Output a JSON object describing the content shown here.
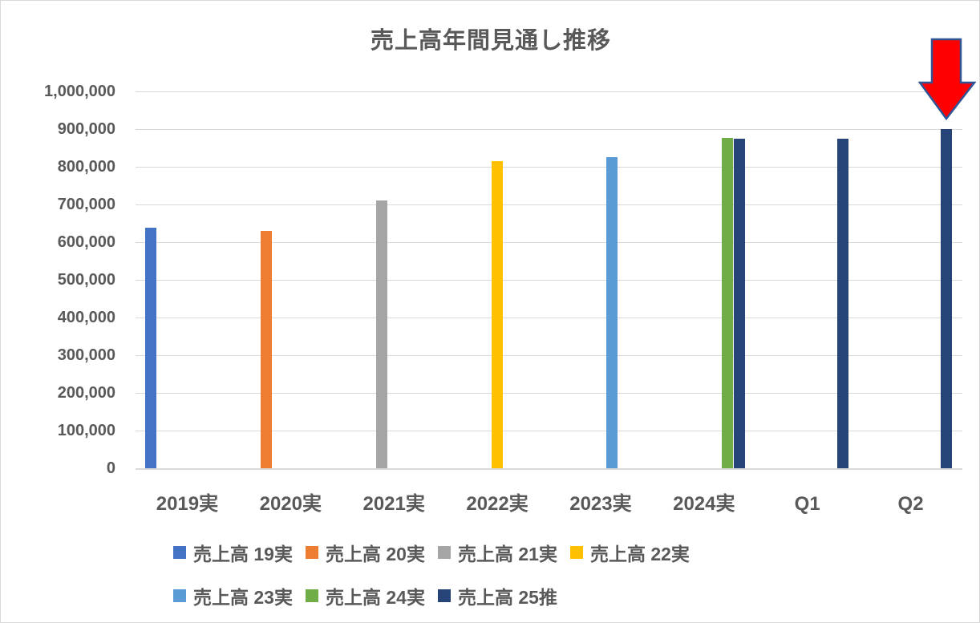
{
  "chart_data": {
    "type": "bar",
    "title": "売上高年間見通し推移",
    "categories": [
      "2019実",
      "2020実",
      "2021実",
      "2022実",
      "2023実",
      "2024実",
      "Q1",
      "Q2"
    ],
    "series": [
      {
        "name": "売上高 19実",
        "color": "#4472C4",
        "values": [
          638000,
          null,
          null,
          null,
          null,
          null,
          null,
          null
        ]
      },
      {
        "name": "売上高 20実",
        "color": "#ED7D31",
        "values": [
          null,
          630000,
          null,
          null,
          null,
          null,
          null,
          null
        ]
      },
      {
        "name": "売上高 21実",
        "color": "#A5A5A5",
        "values": [
          null,
          null,
          710000,
          null,
          null,
          null,
          null,
          null
        ]
      },
      {
        "name": "売上高 22実",
        "color": "#FFC000",
        "values": [
          null,
          null,
          null,
          815000,
          null,
          null,
          null,
          null
        ]
      },
      {
        "name": "売上高 23実",
        "color": "#5B9BD5",
        "values": [
          null,
          null,
          null,
          null,
          825000,
          null,
          null,
          null
        ]
      },
      {
        "name": "売上高 24実",
        "color": "#70AD47",
        "values": [
          null,
          null,
          null,
          null,
          null,
          877000,
          null,
          null
        ]
      },
      {
        "name": "売上高 25推",
        "color": "#264478",
        "values": [
          null,
          null,
          null,
          null,
          null,
          875000,
          875000,
          900000
        ]
      }
    ],
    "y_axis": {
      "min": 0,
      "max": 1000000,
      "step": 100000,
      "tick_labels": [
        "0",
        "100,000",
        "200,000",
        "300,000",
        "400,000",
        "500,000",
        "600,000",
        "700,000",
        "800,000",
        "900,000",
        "1,000,000"
      ]
    },
    "x_axis": {
      "label": ""
    },
    "grid": true,
    "legend_position": "bottom",
    "legend_rows": [
      4,
      3
    ],
    "annotation": {
      "shape": "down-arrow",
      "points_to_category": "Q2",
      "fill_color": "#FF0000",
      "outline_color": "#2F5597"
    },
    "colors": {
      "text": "#595959",
      "gridline": "#D9D9D9",
      "background": "#FFFFFF"
    }
  }
}
